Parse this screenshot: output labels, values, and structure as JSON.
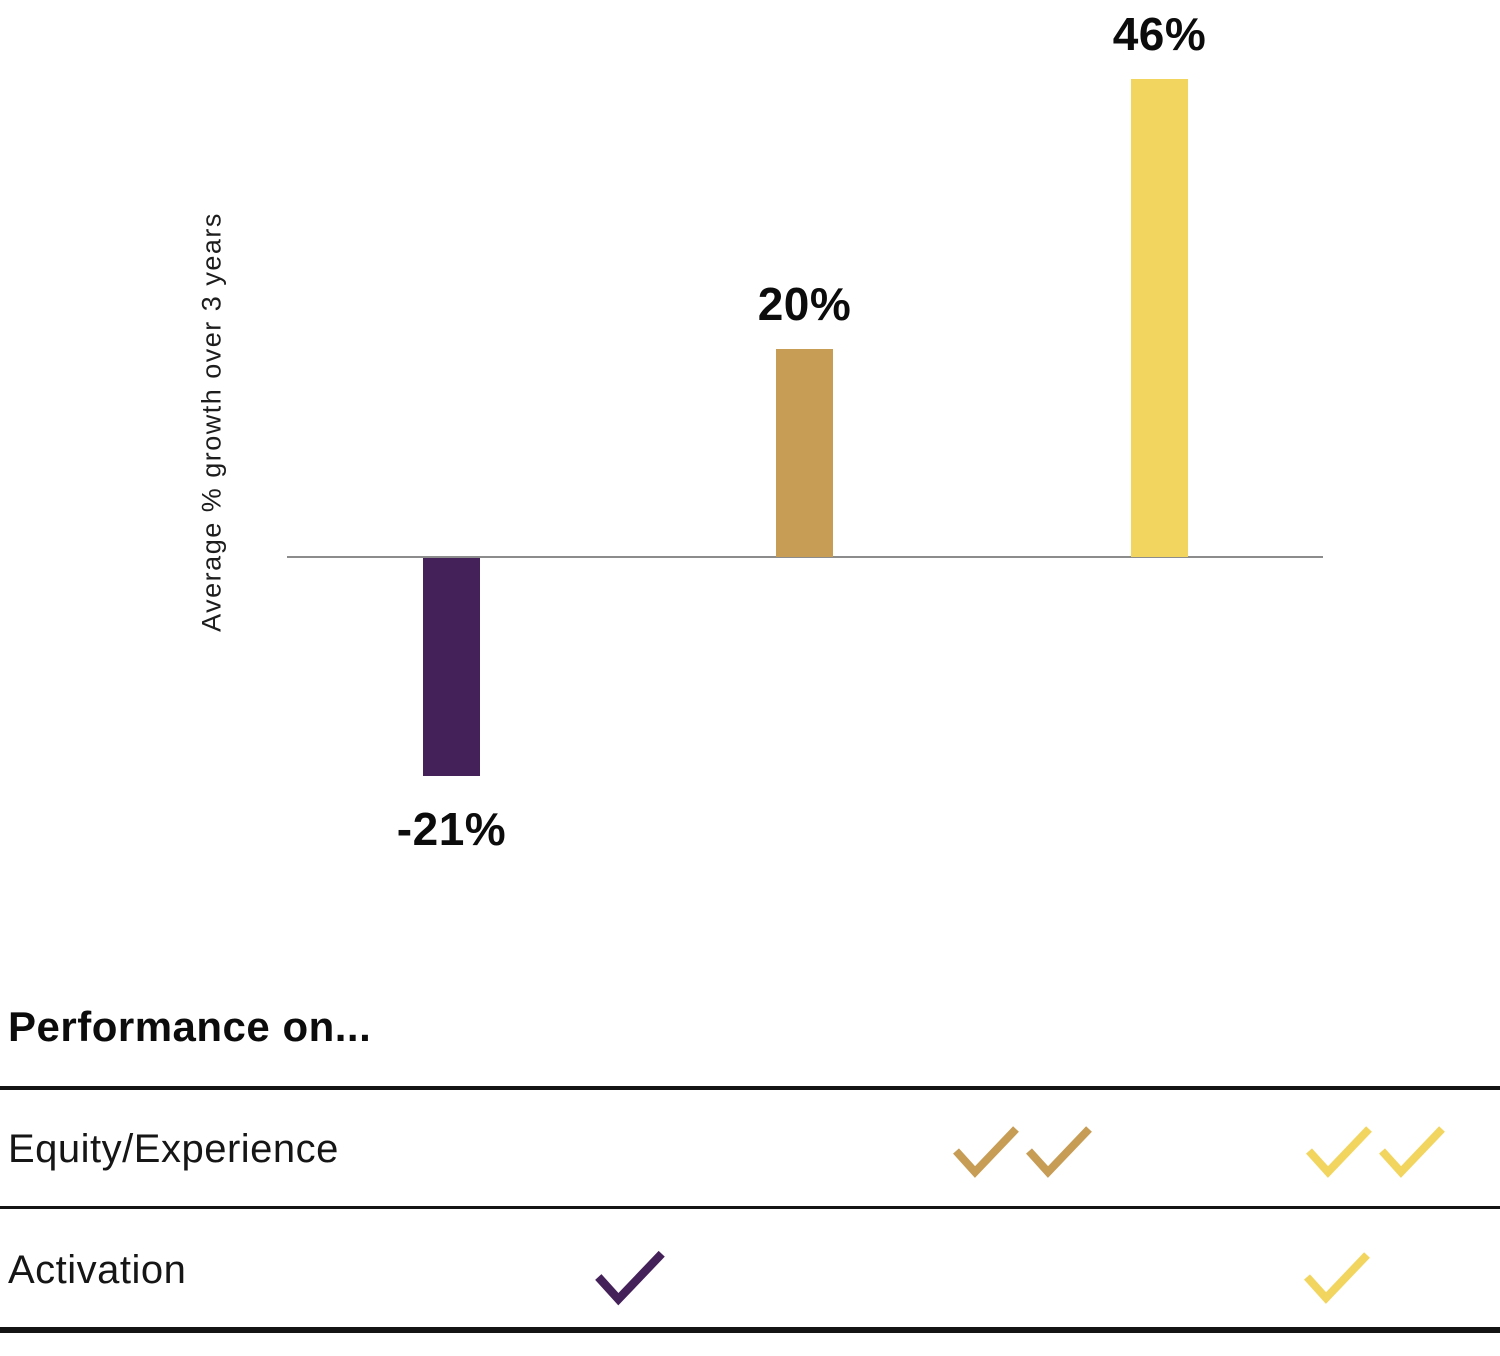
{
  "chart_data": {
    "type": "bar",
    "title": "",
    "xlabel": "",
    "ylabel": "Average % growth over 3 years",
    "categories": [
      "",
      "",
      ""
    ],
    "values": [
      -21,
      20,
      46
    ],
    "data_labels": [
      "-21%",
      "20%",
      "46%"
    ],
    "colors": [
      "#45215A",
      "#C79C55",
      "#F2D55F"
    ],
    "ylim": [
      -25,
      50
    ],
    "baseline": 0,
    "grid": false,
    "legend": false,
    "axis_line_color": "#8c8c8c"
  },
  "table": {
    "heading": "Performance on...",
    "rows": [
      {
        "label": "Equity/Experience",
        "checks": [
          {
            "color": "#C79C55",
            "color_name": "tan",
            "count": 2
          },
          {
            "color": "#F2D55F",
            "color_name": "yellow",
            "count": 2
          }
        ]
      },
      {
        "label": "Activation",
        "checks": [
          {
            "color": "#45215A",
            "color_name": "purple",
            "count": 1
          },
          {
            "color": "#F2D55F",
            "color_name": "yellow",
            "count": 1
          }
        ]
      }
    ]
  }
}
